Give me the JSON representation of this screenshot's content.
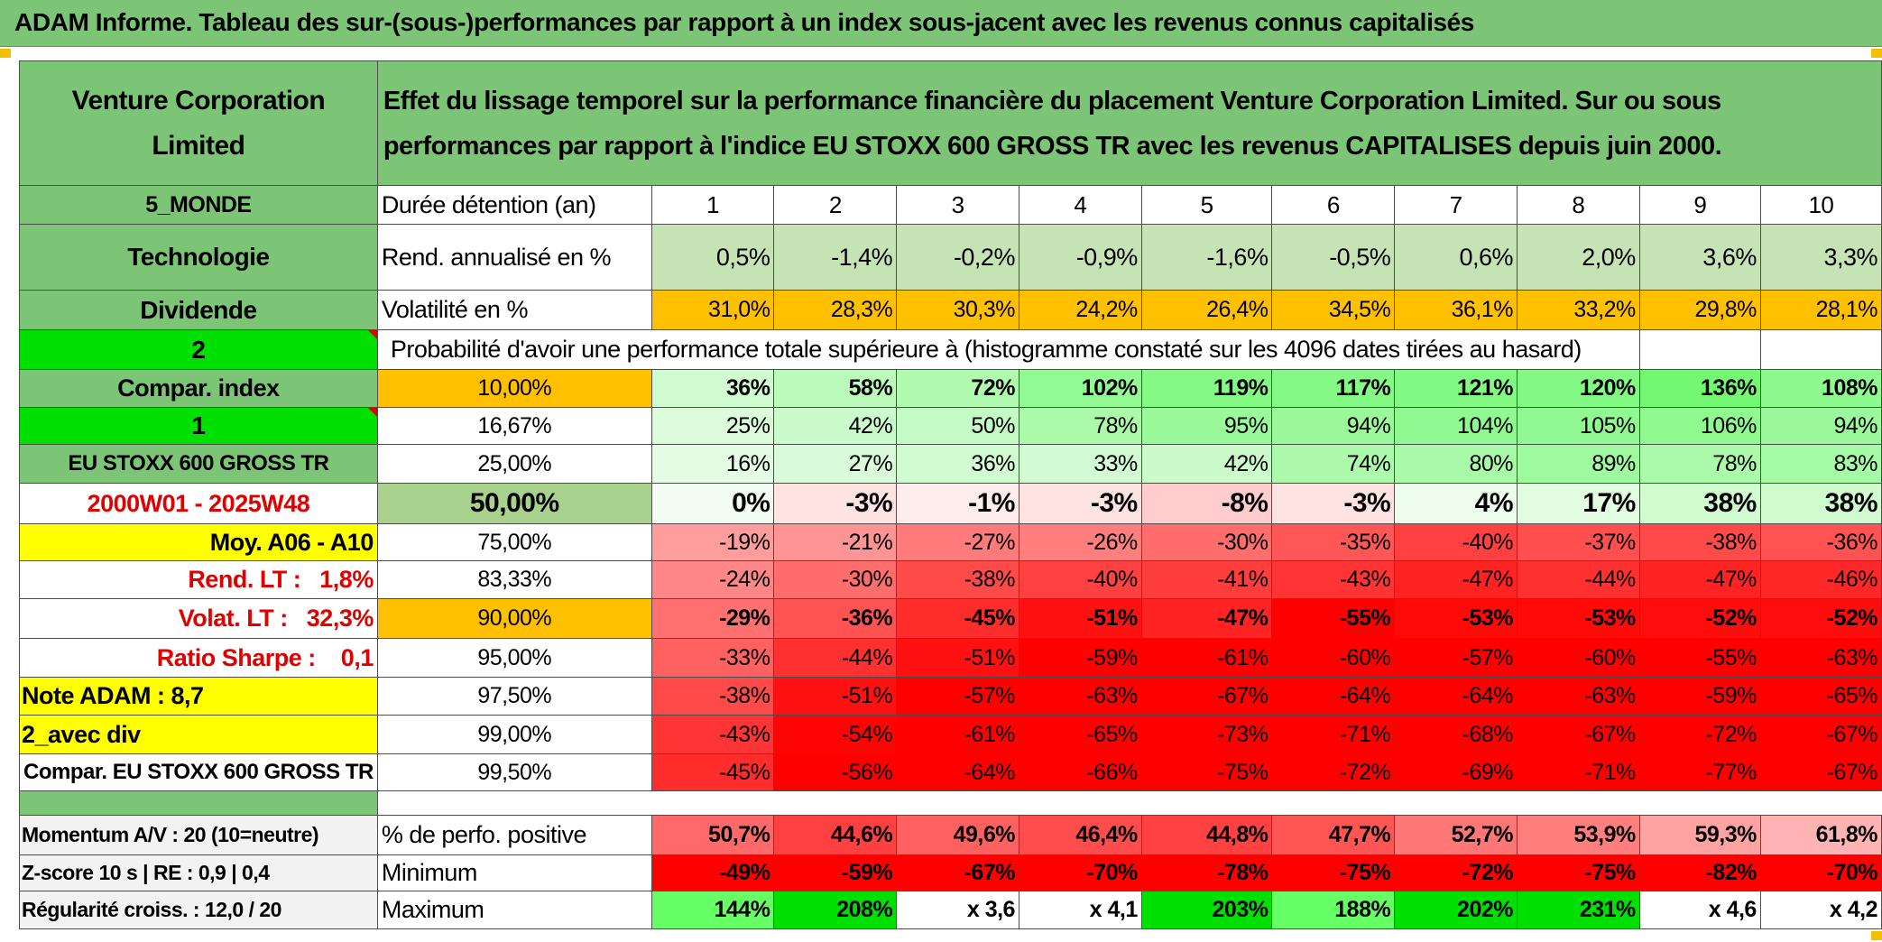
{
  "title": "ADAM Informe. Tableau des sur-(sous-)performances par rapport à un index sous-jacent avec les revenus connus capitalisés",
  "company": "Venture Corporation Limited",
  "description": "Effet du lissage temporel sur la performance financière du placement Venture Corporation Limited. Sur ou sous performances par rapport à l'indice EU STOXX 600 GROSS TR avec les revenus CAPITALISES depuis juin 2000.",
  "left": {
    "region": "5_MONDE",
    "sector": "Technologie",
    "dividend": "Dividende",
    "selector_a": "2",
    "compar_index": "Compar. index",
    "selector_b": "1",
    "index_name": "EU STOXX 600 GROSS TR",
    "period": "2000W01 - 2025W48",
    "moy": "Moy. A06 - A10",
    "rend_lt": "Rend. LT :   1,8%",
    "volat_lt": "Volat. LT :   32,3%",
    "sharpe": "Ratio Sharpe :    0,1",
    "note": "Note ADAM : 8,7",
    "avec_div": "2_avec div",
    "compar_full": "Compar. EU STOXX 600 GROSS TR",
    "momentum": "Momentum A/V : 20 (10=neutre)",
    "zscore": "Z-score 10 s | RE : 0,9 | 0,4",
    "regularite": "Régularité croiss. : 12,0 / 20"
  },
  "labels": {
    "duree": "Durée détention (an)",
    "rend": "Rend. annualisé en %",
    "volat": "Volatilité en %",
    "proba": "Probabilité d'avoir une performance totale supérieure à (histogramme constaté sur les 4096 dates tirées au hasard)",
    "perfo_pos": "% de perfo. positive",
    "minimum": "Minimum",
    "maximum": "Maximum"
  },
  "years": [
    "1",
    "2",
    "3",
    "4",
    "5",
    "6",
    "7",
    "8",
    "9",
    "10"
  ],
  "rend": [
    "0,5%",
    "-1,4%",
    "-0,2%",
    "-0,9%",
    "-1,6%",
    "-0,5%",
    "0,6%",
    "2,0%",
    "3,6%",
    "3,3%"
  ],
  "volat": [
    "31,0%",
    "28,3%",
    "30,3%",
    "24,2%",
    "26,4%",
    "34,5%",
    "36,1%",
    "33,2%",
    "29,8%",
    "28,1%"
  ],
  "prob_rows": [
    {
      "pct": "10,00%",
      "values": [
        "36%",
        "58%",
        "72%",
        "102%",
        "119%",
        "117%",
        "121%",
        "120%",
        "136%",
        "108%"
      ]
    },
    {
      "pct": "16,67%",
      "values": [
        "25%",
        "42%",
        "50%",
        "78%",
        "95%",
        "94%",
        "104%",
        "105%",
        "106%",
        "94%"
      ]
    },
    {
      "pct": "25,00%",
      "values": [
        "16%",
        "27%",
        "36%",
        "33%",
        "42%",
        "74%",
        "80%",
        "89%",
        "78%",
        "83%"
      ]
    },
    {
      "pct": "50,00%",
      "values": [
        "0%",
        "-3%",
        "-1%",
        "-3%",
        "-8%",
        "-3%",
        "4%",
        "17%",
        "38%",
        "38%"
      ]
    },
    {
      "pct": "75,00%",
      "values": [
        "-19%",
        "-21%",
        "-27%",
        "-26%",
        "-30%",
        "-35%",
        "-40%",
        "-37%",
        "-38%",
        "-36%"
      ]
    },
    {
      "pct": "83,33%",
      "values": [
        "-24%",
        "-30%",
        "-38%",
        "-40%",
        "-41%",
        "-43%",
        "-47%",
        "-44%",
        "-47%",
        "-46%"
      ]
    },
    {
      "pct": "90,00%",
      "values": [
        "-29%",
        "-36%",
        "-45%",
        "-51%",
        "-47%",
        "-55%",
        "-53%",
        "-53%",
        "-52%",
        "-52%"
      ]
    },
    {
      "pct": "95,00%",
      "values": [
        "-33%",
        "-44%",
        "-51%",
        "-59%",
        "-61%",
        "-60%",
        "-57%",
        "-60%",
        "-55%",
        "-63%"
      ]
    },
    {
      "pct": "97,50%",
      "values": [
        "-38%",
        "-51%",
        "-57%",
        "-63%",
        "-67%",
        "-64%",
        "-64%",
        "-63%",
        "-59%",
        "-65%"
      ]
    },
    {
      "pct": "99,00%",
      "values": [
        "-43%",
        "-54%",
        "-61%",
        "-65%",
        "-73%",
        "-71%",
        "-68%",
        "-67%",
        "-72%",
        "-67%"
      ]
    },
    {
      "pct": "99,50%",
      "values": [
        "-45%",
        "-56%",
        "-64%",
        "-66%",
        "-75%",
        "-72%",
        "-69%",
        "-71%",
        "-77%",
        "-67%"
      ]
    }
  ],
  "perfo_pos": [
    "50,7%",
    "44,6%",
    "49,6%",
    "46,4%",
    "44,8%",
    "47,7%",
    "52,7%",
    "53,9%",
    "59,3%",
    "61,8%"
  ],
  "minimum": [
    "-49%",
    "-59%",
    "-67%",
    "-70%",
    "-78%",
    "-75%",
    "-72%",
    "-75%",
    "-82%",
    "-70%"
  ],
  "maximum": [
    "144%",
    "208%",
    "x 3,6",
    "x 4,1",
    "203%",
    "188%",
    "202%",
    "231%",
    "x 4,6",
    "x 4,2"
  ],
  "colors": {
    "header_green": "#7cc576",
    "light_green": "#c6e3b5",
    "orange": "#ffc000",
    "bright_green": "#00e000",
    "yellow": "#ffff00",
    "red_text": "#e00000"
  }
}
